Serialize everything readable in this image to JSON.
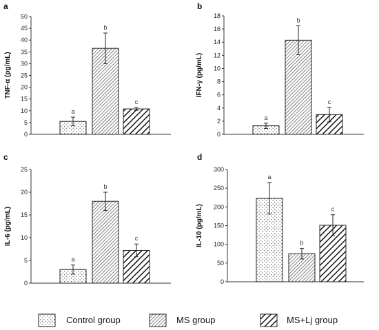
{
  "chart_data": [
    {
      "type": "bar",
      "panel": "a",
      "ylabel": "TNF-α (pg/mL)",
      "ylim": [
        0,
        50
      ],
      "yticks": [
        0,
        5,
        10,
        15,
        20,
        25,
        30,
        35,
        40,
        45,
        50
      ],
      "categories": [
        "Control group",
        "MS group",
        "MS+Lj group"
      ],
      "values": [
        5.5,
        36.5,
        10.8
      ],
      "errors": [
        1.8,
        6.5,
        0.6
      ],
      "significance": [
        "a",
        "b",
        "c"
      ],
      "grid": false
    },
    {
      "type": "bar",
      "panel": "b",
      "ylabel": "IFN-γ (pg/mL)",
      "ylim": [
        0,
        18
      ],
      "yticks": [
        0,
        2,
        4,
        6,
        8,
        10,
        12,
        14,
        16,
        18
      ],
      "categories": [
        "Control group",
        "MS group",
        "MS+Lj group"
      ],
      "values": [
        1.3,
        14.3,
        3.0
      ],
      "errors": [
        0.4,
        2.2,
        1.1
      ],
      "significance": [
        "a",
        "b",
        "c"
      ],
      "grid": false
    },
    {
      "type": "bar",
      "panel": "c",
      "ylabel": "IL-6 (pg/mL)",
      "ylim": [
        0,
        25
      ],
      "yticks": [
        0,
        5,
        10,
        15,
        20,
        25
      ],
      "categories": [
        "Control group",
        "MS group",
        "MS+Lj group"
      ],
      "values": [
        3.0,
        18.0,
        7.2
      ],
      "errors": [
        1.0,
        2.0,
        1.4
      ],
      "significance": [
        "a",
        "b",
        "c"
      ],
      "grid": false
    },
    {
      "type": "bar",
      "panel": "d",
      "ylabel": "IL-10 (pg/mL)",
      "ylim": [
        0,
        300
      ],
      "yticks": [
        0,
        50,
        100,
        150,
        200,
        250,
        300
      ],
      "categories": [
        "Control group",
        "MS group",
        "MS+Lj group"
      ],
      "values": [
        223,
        75,
        151
      ],
      "errors": [
        42,
        14,
        28
      ],
      "significance": [
        "a",
        "b",
        "c"
      ],
      "grid": false
    }
  ],
  "legend": {
    "placement": "bottom",
    "items": [
      {
        "label": "Control group",
        "pattern": "dots"
      },
      {
        "label": "MS group",
        "pattern": "fine-hatch"
      },
      {
        "label": "MS+Lj group",
        "pattern": "bold-hatch"
      }
    ]
  }
}
